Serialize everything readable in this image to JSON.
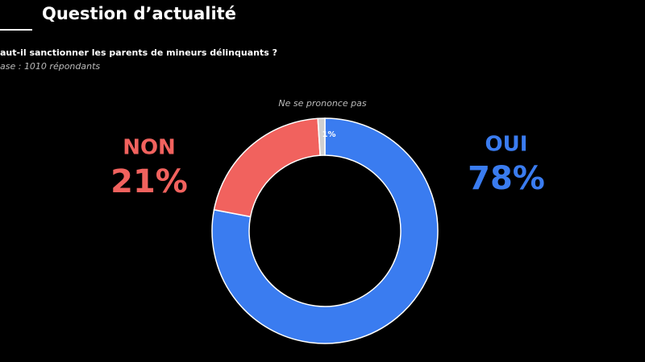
{
  "chart_data": {
    "type": "donut",
    "title": "Question d’actualité",
    "subtitle": "aut-il sanctionner les parents de mineurs délinquants ?",
    "note": "ase : 1010 répondants",
    "categories": [
      "OUI",
      "NON",
      "Ne se prononce pas"
    ],
    "values": [
      78,
      21,
      1
    ],
    "value_labels": [
      "78%",
      "21%",
      "1%"
    ],
    "colors": [
      "#3a7cf0",
      "#f1625e",
      "#d0d0d0"
    ]
  }
}
